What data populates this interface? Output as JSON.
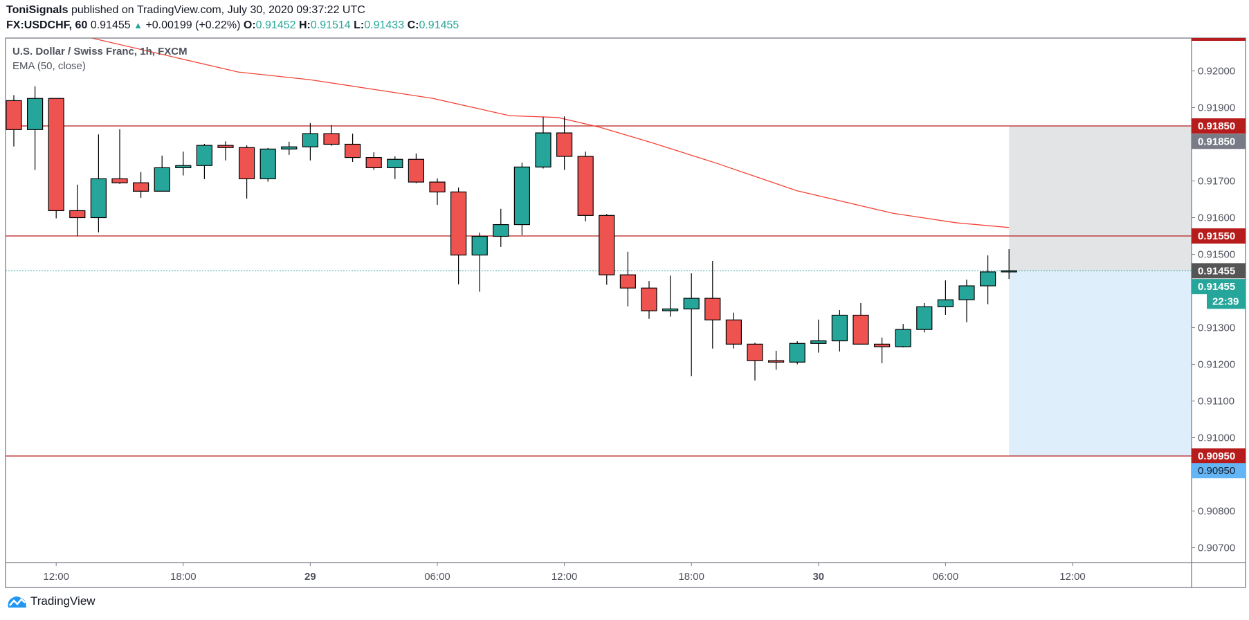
{
  "header": {
    "author": "ToniSignals",
    "published": "published on TradingView.com, July 30, 2020 09:37:22 UTC",
    "symbol": "FX:USDCHF, 60",
    "last": "0.91455",
    "change": "+0.00199 (+0.22%)",
    "o_label": "O:",
    "o": "0.91452",
    "h_label": "H:",
    "h": "0.91514",
    "l_label": "L:",
    "l": "0.91433",
    "c_label": "C:",
    "c": "0.91455",
    "up_arrow": "▲"
  },
  "legend": {
    "title": "U.S. Dollar / Swiss Franc, 1h, FXCM",
    "indicator": "EMA (50, close)"
  },
  "logo": {
    "text": "TradingView"
  },
  "colors": {
    "up": "#26a69a",
    "down": "#ef5350",
    "ema": "#f44336",
    "level": "#b71c1c",
    "stop_zone": "#e3e4e6",
    "target_zone": "#deeefb"
  },
  "chart_data": {
    "type": "candlestick",
    "title": "U.S. Dollar / Swiss Franc, 1h, FXCM",
    "ylim": [
      0.9066,
      0.9212
    ],
    "ohlc": [
      [
        0.91919,
        0.91934,
        0.91794,
        0.9184
      ],
      [
        0.9184,
        0.91958,
        0.9173,
        0.91925
      ],
      [
        0.91925,
        0.91925,
        0.91598,
        0.91619
      ],
      [
        0.91619,
        0.9169,
        0.9155,
        0.916
      ],
      [
        0.916,
        0.91827,
        0.9156,
        0.91706
      ],
      [
        0.91706,
        0.91841,
        0.91692,
        0.91695
      ],
      [
        0.91695,
        0.91724,
        0.91654,
        0.91672
      ],
      [
        0.91672,
        0.91769,
        0.91672,
        0.91736
      ],
      [
        0.91736,
        0.9178,
        0.91715,
        0.91742
      ],
      [
        0.91742,
        0.91801,
        0.91705,
        0.91797
      ],
      [
        0.91797,
        0.91808,
        0.91756,
        0.91791
      ],
      [
        0.91791,
        0.91797,
        0.91652,
        0.91706
      ],
      [
        0.91706,
        0.9179,
        0.91698,
        0.91787
      ],
      [
        0.91787,
        0.91807,
        0.91771,
        0.91793
      ],
      [
        0.91793,
        0.91858,
        0.91756,
        0.91829
      ],
      [
        0.91829,
        0.91852,
        0.91796,
        0.918
      ],
      [
        0.918,
        0.91829,
        0.91752,
        0.91764
      ],
      [
        0.91764,
        0.91778,
        0.9173,
        0.91736
      ],
      [
        0.91736,
        0.91767,
        0.91705,
        0.91759
      ],
      [
        0.91759,
        0.91775,
        0.91694,
        0.91697
      ],
      [
        0.91697,
        0.91707,
        0.91635,
        0.9167
      ],
      [
        0.9167,
        0.91682,
        0.91418,
        0.91498
      ],
      [
        0.91498,
        0.91559,
        0.91398,
        0.91549
      ],
      [
        0.91549,
        0.91624,
        0.9152,
        0.91581
      ],
      [
        0.91581,
        0.9175,
        0.91552,
        0.91738
      ],
      [
        0.91738,
        0.91875,
        0.91734,
        0.91831
      ],
      [
        0.91831,
        0.91876,
        0.9173,
        0.91767
      ],
      [
        0.91767,
        0.9178,
        0.9159,
        0.91606
      ],
      [
        0.91606,
        0.9161,
        0.91417,
        0.91444
      ],
      [
        0.91444,
        0.91507,
        0.91358,
        0.91408
      ],
      [
        0.91408,
        0.91427,
        0.91324,
        0.91346
      ],
      [
        0.91346,
        0.91442,
        0.9133,
        0.91351
      ],
      [
        0.91351,
        0.91448,
        0.91168,
        0.9138
      ],
      [
        0.9138,
        0.91482,
        0.91243,
        0.91321
      ],
      [
        0.91321,
        0.91341,
        0.91243,
        0.91255
      ],
      [
        0.91255,
        0.91259,
        0.91156,
        0.9121
      ],
      [
        0.9121,
        0.91237,
        0.91185,
        0.91206
      ],
      [
        0.91206,
        0.91263,
        0.912,
        0.91257
      ],
      [
        0.91257,
        0.91322,
        0.91232,
        0.91264
      ],
      [
        0.91264,
        0.91348,
        0.91235,
        0.91334
      ],
      [
        0.91334,
        0.91367,
        0.91255,
        0.91255
      ],
      [
        0.91255,
        0.91273,
        0.91203,
        0.91248
      ],
      [
        0.91248,
        0.9131,
        0.91246,
        0.91295
      ],
      [
        0.91295,
        0.91367,
        0.91287,
        0.91357
      ],
      [
        0.91357,
        0.91429,
        0.91335,
        0.91376
      ],
      [
        0.91376,
        0.91431,
        0.91315,
        0.91414
      ],
      [
        0.91414,
        0.91497,
        0.91364,
        0.91452
      ],
      [
        0.91452,
        0.91514,
        0.91433,
        0.91455
      ]
    ],
    "ema50": [
      [
        3.5,
        0.92092
      ],
      [
        10.6,
        0.91997
      ],
      [
        14,
        0.91976
      ],
      [
        19.8,
        0.91925
      ],
      [
        23.4,
        0.91878
      ],
      [
        25.7,
        0.91873
      ],
      [
        27.7,
        0.91846
      ],
      [
        30.2,
        0.91803
      ],
      [
        33.2,
        0.91748
      ],
      [
        37,
        0.91673
      ],
      [
        41.5,
        0.91612
      ],
      [
        44.5,
        0.91586
      ],
      [
        47,
        0.91573
      ]
    ],
    "levels": [
      0.9185,
      0.9155,
      0.9095
    ],
    "last_price": 0.91455,
    "position": {
      "start_bar": 47,
      "entry": 0.91455,
      "stop": 0.9185,
      "target": 0.9095
    },
    "y_ticks": [
      "0.92000",
      "0.91900",
      "0.91700",
      "0.91600",
      "0.91500",
      "0.91300",
      "0.91200",
      "0.91100",
      "0.91000",
      "0.90800",
      "0.90700"
    ],
    "x_ticks": [
      {
        "bar": 2,
        "label": "12:00"
      },
      {
        "bar": 8,
        "label": "18:00"
      },
      {
        "bar": 14,
        "label": "29",
        "bold": true
      },
      {
        "bar": 20,
        "label": "06:00"
      },
      {
        "bar": 26,
        "label": "12:00"
      },
      {
        "bar": 32,
        "label": "18:00"
      },
      {
        "bar": 38,
        "label": "30",
        "bold": true
      },
      {
        "bar": 44,
        "label": "06:00"
      },
      {
        "bar": 50,
        "label": "12:00"
      }
    ],
    "badges": [
      {
        "text": "0.91850",
        "price": 0.9185,
        "color": "#b71c1c"
      },
      {
        "text": "0.91850",
        "price": 0.91808,
        "color": "#787b86"
      },
      {
        "text": "0.91550",
        "price": 0.9155,
        "color": "#b71c1c"
      },
      {
        "text": "0.91455",
        "price": 0.91455,
        "color": "#555555"
      },
      {
        "text": "0.91455",
        "price": 0.91412,
        "color": "#26a69a"
      },
      {
        "text": "22:39",
        "price": 0.91372,
        "color": "#26a69a",
        "short": true
      },
      {
        "text": "0.90950",
        "price": 0.9095,
        "color": "#b71c1c"
      },
      {
        "text": "0.90950",
        "price": 0.9091,
        "color": "#64b5f6",
        "dark": true
      }
    ]
  }
}
